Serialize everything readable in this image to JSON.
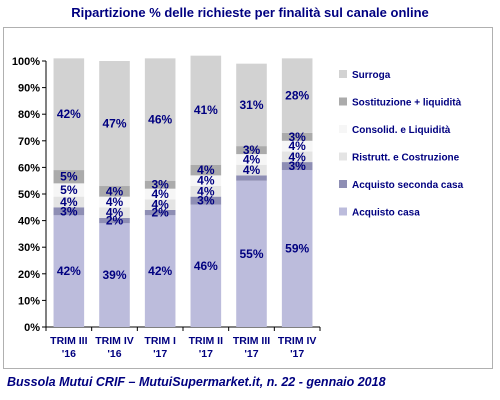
{
  "chart_data": {
    "type": "bar",
    "stacked": true,
    "title": "Ripartizione % delle richieste per finalità sul canale online",
    "categories": [
      [
        "TRIM III",
        "'16"
      ],
      [
        "TRIM IV",
        "'16"
      ],
      [
        "TRIM I",
        "'17"
      ],
      [
        "TRIM II",
        "'17"
      ],
      [
        "TRIM III",
        "'17"
      ],
      [
        "TRIM IV",
        "'17"
      ]
    ],
    "ylim": [
      0,
      100
    ],
    "yticks": [
      "0%",
      "10%",
      "20%",
      "30%",
      "40%",
      "50%",
      "60%",
      "70%",
      "80%",
      "90%",
      "100%"
    ],
    "grid": false,
    "legend_position": "right",
    "series": [
      {
        "name": "Acquisto casa",
        "color": "#bcbcdc",
        "values": [
          42,
          39,
          42,
          46,
          55,
          59
        ],
        "labels": [
          "42%",
          "39%",
          "42%",
          "46%",
          "55%",
          "59%"
        ]
      },
      {
        "name": "Acquisto seconda casa",
        "color": "#8e8eb4",
        "values": [
          3,
          2,
          2,
          3,
          2,
          3
        ],
        "labels": [
          "3%",
          "2%",
          "2%",
          "3%",
          "",
          "3%"
        ]
      },
      {
        "name": "Ristrutt. e Costruzione",
        "color": "#e4e4e4",
        "values": [
          4,
          4,
          4,
          4,
          4,
          4
        ],
        "labels": [
          "4%",
          "4%",
          "4%",
          "4%",
          "4%",
          "4%"
        ]
      },
      {
        "name": "Consolid. e Liquidità",
        "color": "#f6f6f6",
        "values": [
          5,
          4,
          4,
          4,
          4,
          4
        ],
        "labels": [
          "5%",
          "4%",
          "4%",
          "4%",
          "4%",
          "4%"
        ]
      },
      {
        "name": "Sostituzione + liquidità",
        "color": "#ababab",
        "values": [
          5,
          4,
          3,
          4,
          3,
          3
        ],
        "labels": [
          "5%",
          "4%",
          "3%",
          "4%",
          "3%",
          "3%"
        ]
      },
      {
        "name": "Surroga",
        "color": "#d2d2d2",
        "values": [
          42,
          47,
          46,
          41,
          31,
          28
        ],
        "labels": [
          "42%",
          "47%",
          "46%",
          "41%",
          "31%",
          "28%"
        ]
      }
    ]
  },
  "source": "Bussola Mutui CRIF – MutuiSupermarket.it, n. 22 - gennaio 2018"
}
